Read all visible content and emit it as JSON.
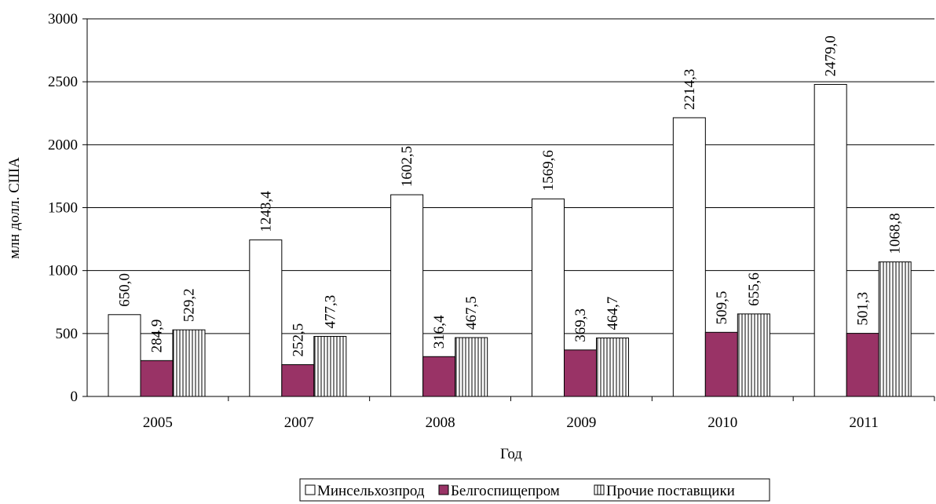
{
  "chart_data": {
    "type": "bar",
    "title": "",
    "xlabel": "Год",
    "ylabel": "млн долл. США",
    "categories": [
      "2005",
      "2007",
      "2008",
      "2009",
      "2010",
      "2011"
    ],
    "ylim": [
      0,
      3000
    ],
    "yticks": [
      "0",
      "500",
      "1000",
      "1500",
      "2000",
      "2500",
      "3000"
    ],
    "grid": true,
    "legend_position": "bottom",
    "series": [
      {
        "name": "Минсельхозпрод",
        "values": [
          650.0,
          1243.4,
          1602.5,
          1569.6,
          2214.3,
          2479.0
        ],
        "labels": [
          "650,0",
          "1243,4",
          "1602,5",
          "1569,6",
          "2214,3",
          "2479,0"
        ],
        "fill": "#ffffff",
        "pattern": "solid"
      },
      {
        "name": "Белгоспищепром",
        "values": [
          284.9,
          252.5,
          316.4,
          369.3,
          509.5,
          501.3
        ],
        "labels": [
          "284,9",
          "252,5",
          "316,4",
          "369,3",
          "509,5",
          "501,3"
        ],
        "fill": "#993366",
        "pattern": "solid"
      },
      {
        "name": "Прочие поставщики",
        "values": [
          529.2,
          477.3,
          467.5,
          464.7,
          655.6,
          1068.8
        ],
        "labels": [
          "529,2",
          "477,3",
          "467,5",
          "464,7",
          "655,6",
          "1068,8"
        ],
        "fill": "#ffffff",
        "pattern": "vertical-lines"
      }
    ]
  }
}
